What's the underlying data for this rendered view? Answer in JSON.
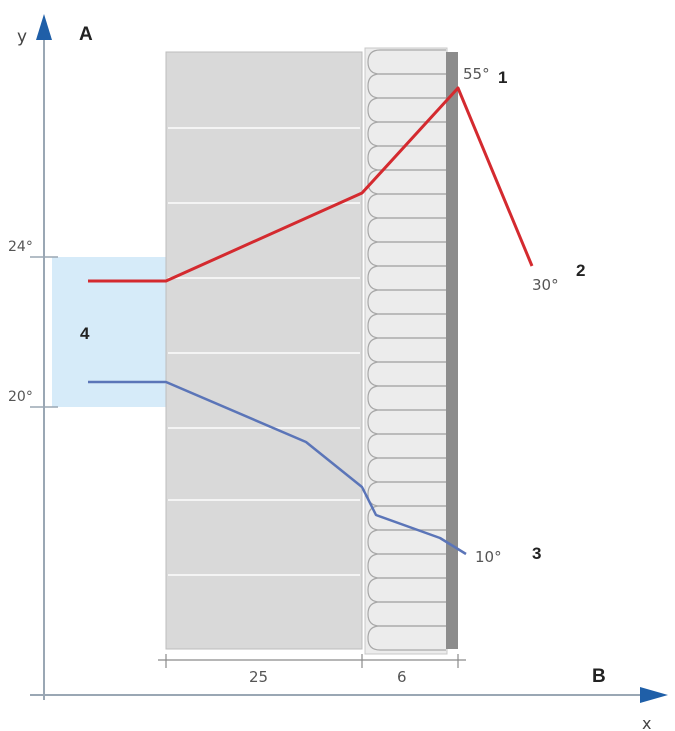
{
  "diagram": {
    "axis_labels": {
      "y": "y",
      "x": "x"
    },
    "corner_labels": {
      "a": "A",
      "b": "B"
    },
    "temp_labels": {
      "t24": "24°",
      "t20": "20°",
      "t55": "55°",
      "t30": "30°",
      "t10": "10°"
    },
    "markers": {
      "m1": "1",
      "m2": "2",
      "m3": "3",
      "m4": "4"
    },
    "thickness": {
      "wall": "25",
      "insulation": "6"
    },
    "colors": {
      "axis": "#1f5fa8",
      "red_line": "#d42a2f",
      "blue_line": "#5b75b8",
      "wall_fill": "#d9d9d9",
      "insulation_fill": "#ececec",
      "facade": "#8c8c8c",
      "comfort_zone": "#d6ebf9"
    }
  }
}
